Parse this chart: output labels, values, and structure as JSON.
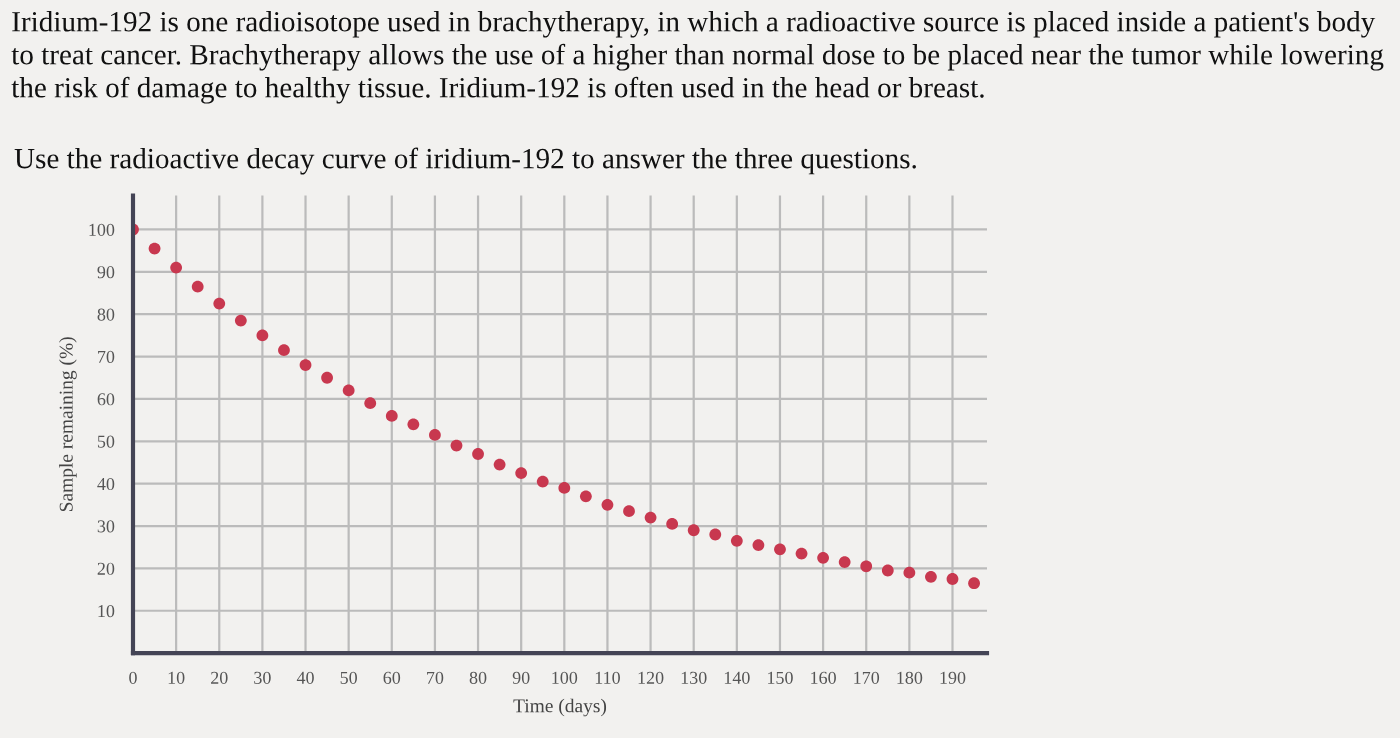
{
  "chart_data": {
    "type": "scatter",
    "title": "Iridium-192 is one radioisotope used in brachytherapy, in which a radioactive source is placed inside a patient's body to treat cancer. Brachytherapy allows the use of a higher than normal dose to be placed near the tumor while lowering the risk of damage to healthy tissue. Iridium-192 is often used in the head or breast.",
    "subtitle": "Use the radioactive decay curve of iridium-192 to answer the three questions.",
    "xlabel": "Time (days)",
    "ylabel": "Sample remaining (%)",
    "x": [
      0,
      5,
      10,
      15,
      20,
      25,
      30,
      35,
      40,
      45,
      50,
      55,
      60,
      65,
      70,
      75,
      80,
      85,
      90,
      95,
      100,
      105,
      110,
      115,
      120,
      125,
      130,
      135,
      140,
      145,
      150,
      155,
      160,
      165,
      170,
      175,
      180,
      185,
      190,
      195
    ],
    "series": [
      {
        "color": "#c8384f",
        "values": [
          100,
          95.5,
          91,
          86.5,
          82.5,
          78.5,
          75,
          71.5,
          68,
          65,
          62,
          59,
          56,
          54,
          51.5,
          49,
          47,
          44.5,
          42.5,
          40.5,
          39,
          37,
          35,
          33.5,
          32,
          30.5,
          29,
          28,
          26.5,
          25.5,
          24.5,
          23.5,
          22.5,
          21.5,
          20.5,
          19.5,
          19,
          18,
          17.5,
          16.5
        ]
      }
    ],
    "xlim": [
      0,
      198
    ],
    "ylim": [
      0,
      108
    ],
    "xticks": [
      0,
      10,
      20,
      30,
      40,
      50,
      60,
      70,
      80,
      90,
      100,
      110,
      120,
      130,
      140,
      150,
      160,
      170,
      180,
      190
    ],
    "yticks": [
      10,
      20,
      30,
      40,
      50,
      60,
      70,
      80,
      90,
      100
    ],
    "grid": true,
    "marker": "circle",
    "legend": false
  }
}
